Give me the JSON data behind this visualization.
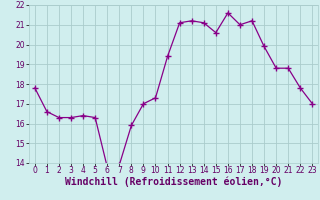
{
  "hours": [
    0,
    1,
    2,
    3,
    4,
    5,
    6,
    7,
    8,
    9,
    10,
    11,
    12,
    13,
    14,
    15,
    16,
    17,
    18,
    19,
    20,
    21,
    22,
    23
  ],
  "values": [
    17.8,
    16.6,
    16.3,
    16.3,
    16.4,
    16.3,
    13.8,
    13.9,
    15.9,
    17.0,
    17.3,
    19.4,
    21.1,
    21.2,
    21.1,
    20.6,
    21.6,
    21.0,
    21.2,
    19.9,
    18.8,
    18.8,
    17.8,
    17.0
  ],
  "line_color": "#880088",
  "marker": "+",
  "marker_size": 4,
  "bg_color": "#d0eeee",
  "grid_color": "#aacccc",
  "xlabel": "Windchill (Refroidissement éolien,°C)",
  "xlabel_color": "#660066",
  "ylim": [
    14,
    22
  ],
  "yticks": [
    14,
    15,
    16,
    17,
    18,
    19,
    20,
    21,
    22
  ],
  "xticks": [
    0,
    1,
    2,
    3,
    4,
    5,
    6,
    7,
    8,
    9,
    10,
    11,
    12,
    13,
    14,
    15,
    16,
    17,
    18,
    19,
    20,
    21,
    22,
    23
  ],
  "tick_fontsize": 5.5,
  "ylabel_fontsize": 7,
  "xlabel_fontsize": 7
}
